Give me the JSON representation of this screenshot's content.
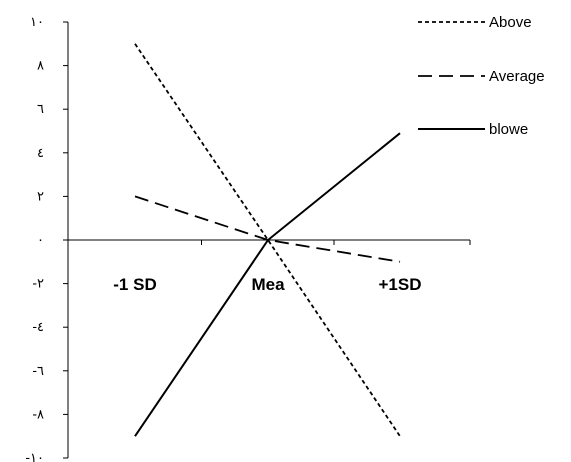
{
  "chart_data": {
    "type": "line",
    "categories": [
      "-1 SD",
      "Mea",
      "+1SD"
    ],
    "y_tick_labels": [
      "١٠",
      "٨",
      "٦",
      "٤",
      "٢",
      "٠",
      "-٢",
      "-٤",
      "-٦",
      "-٨",
      "-١٠"
    ],
    "y_tick_values": [
      10,
      8,
      6,
      4,
      2,
      0,
      -2,
      -4,
      -6,
      -8,
      -10
    ],
    "ylim": [
      -10,
      10
    ],
    "grid": false,
    "legend_position": "top-right",
    "series": [
      {
        "name": "Above",
        "values": [
          9,
          0,
          -9
        ],
        "dash": "dotted",
        "color": "#000000"
      },
      {
        "name": "Average",
        "values": [
          2,
          0,
          -1
        ],
        "dash": "dashed",
        "color": "#000000"
      },
      {
        "name": "blowe",
        "values": [
          -9,
          0,
          4.9
        ],
        "dash": "solid",
        "color": "#000000"
      }
    ]
  }
}
